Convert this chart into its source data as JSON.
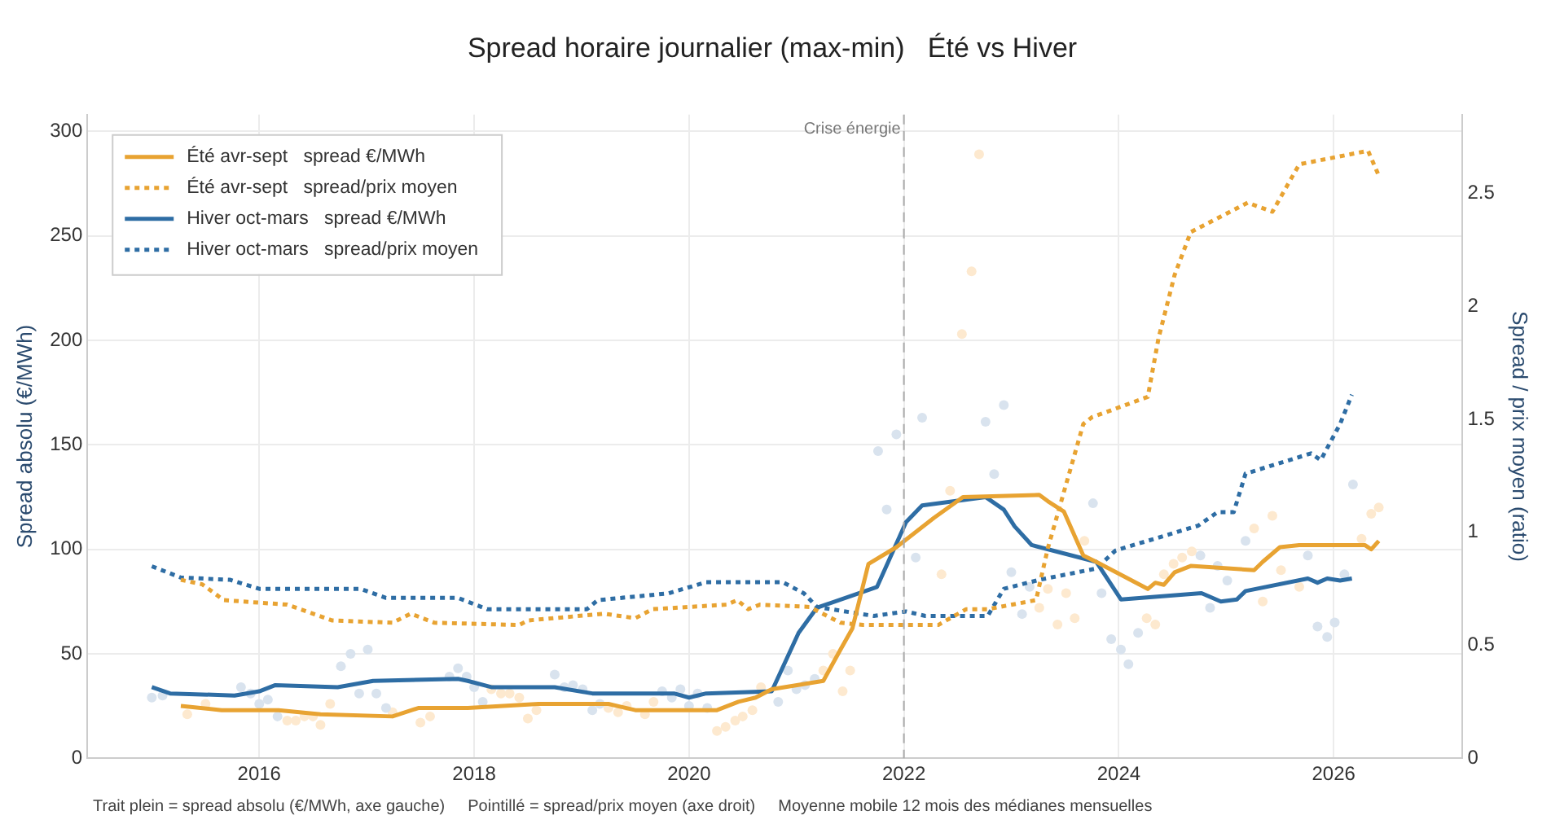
{
  "chart_data": {
    "type": "line",
    "title": "Spread horaire journalier (max-min)   Été vs Hiver",
    "ylabel": "Spread absolu (€/MWh)",
    "y2label": "Spread / prix moyen (ratio)",
    "xlim": [
      2014.4,
      2027.2
    ],
    "xticks": [
      2016,
      2018,
      2020,
      2022,
      2024,
      2026
    ],
    "ylim": [
      0,
      308
    ],
    "yticks": [
      0,
      50,
      100,
      150,
      200,
      250,
      300
    ],
    "y2lim": [
      0,
      2.85
    ],
    "y2ticks": [
      0,
      0.5,
      1,
      1.5,
      2,
      2.5
    ],
    "grid": true,
    "legend": "top left",
    "marker": "none",
    "line_style": "solid",
    "ref_lines": [
      {
        "axis": "x",
        "value": 2022,
        "label": "Crise énergie",
        "color": "#aaaaaa",
        "line_style": "dashed"
      }
    ],
    "annotations": [
      "Trait plein = spread absolu (€/MWh, axe gauche)",
      "Pointillé = spread/prix moyen (axe droit)",
      "Moyenne mobile 12 mois des médianes mensuelles"
    ],
    "series": [
      {
        "type": "scatter",
        "marker": "circle",
        "color": "#d9e3ee",
        "x": [
          2015.0,
          2015.1,
          2015.83,
          2015.92,
          2016.0,
          2016.08,
          2016.17,
          2016.76,
          2016.85,
          2016.93,
          2017.01,
          2017.09,
          2017.18,
          2017.77,
          2017.85,
          2017.93,
          2018.0,
          2018.08,
          2018.75,
          2018.84,
          2018.92,
          2019.01,
          2019.1,
          2019.17,
          2019.75,
          2019.84,
          2019.92,
          2020.0,
          2020.08,
          2020.17,
          2020.83,
          2020.92,
          2021.0,
          2021.08,
          2021.17,
          2021.76,
          2021.84,
          2021.93,
          2022.11,
          2022.17,
          2022.76,
          2022.84,
          2022.93,
          2023.0,
          2023.1,
          2023.17,
          2023.76,
          2023.84,
          2023.93,
          2024.02,
          2024.09,
          2024.18,
          2024.76,
          2024.85,
          2024.92,
          2025.01,
          2025.18,
          2025.76,
          2025.85,
          2025.94,
          2026.01,
          2026.1,
          2026.18
        ],
        "values": [
          29,
          30,
          34,
          31,
          26,
          28,
          20,
          44,
          50,
          31,
          52,
          31,
          24,
          39,
          43,
          39,
          34,
          27,
          40,
          34,
          35,
          33,
          23,
          26,
          32,
          29,
          33,
          25,
          31,
          24,
          27,
          42,
          33,
          35,
          38,
          147,
          119,
          155,
          96,
          163,
          161,
          136,
          169,
          89,
          69,
          82,
          122,
          79,
          57,
          52,
          45,
          60,
          97,
          72,
          92,
          85,
          104,
          97,
          63,
          58,
          65,
          88,
          131
        ]
      },
      {
        "type": "scatter",
        "marker": "circle",
        "color": "#fde9cf",
        "x": [
          2015.33,
          2015.5,
          2015.58,
          2016.17,
          2016.26,
          2016.34,
          2016.42,
          2016.5,
          2016.57,
          2016.66,
          2017.24,
          2017.5,
          2017.59,
          2018.16,
          2018.25,
          2018.33,
          2018.42,
          2018.5,
          2018.58,
          2019.25,
          2019.34,
          2019.42,
          2019.59,
          2019.67,
          2020.26,
          2020.34,
          2020.43,
          2020.5,
          2020.59,
          2020.67,
          2021.25,
          2021.34,
          2021.43,
          2021.5,
          2022.35,
          2022.43,
          2022.54,
          2022.63,
          2022.7,
          2023.26,
          2023.34,
          2023.43,
          2023.51,
          2023.59,
          2023.68,
          2024.26,
          2024.34,
          2024.42,
          2024.51,
          2024.59,
          2024.68,
          2025.26,
          2025.34,
          2025.43,
          2025.51,
          2025.68,
          2026.26,
          2026.35,
          2026.42
        ],
        "values": [
          21,
          26,
          null,
          null,
          18,
          18,
          20,
          20,
          16,
          26,
          22,
          17,
          20,
          33,
          31,
          31,
          29,
          19,
          23,
          24,
          22,
          25,
          21,
          27,
          13,
          15,
          18,
          20,
          23,
          34,
          42,
          50,
          32,
          42,
          88,
          128,
          203,
          233,
          289,
          72,
          81,
          64,
          79,
          67,
          104,
          67,
          64,
          88,
          93,
          96,
          99,
          110,
          75,
          116,
          90,
          82,
          105,
          117,
          120
        ]
      },
      {
        "name": "Été avr-sept   spread €/MWh",
        "color": "#e8a332",
        "x": [
          2015.27,
          2015.65,
          2016.18,
          2016.57,
          2017.24,
          2017.48,
          2017.94,
          2018.6,
          2019.25,
          2019.5,
          2020.26,
          2020.46,
          2020.62,
          2020.77,
          2021.25,
          2021.41,
          2021.52,
          2021.67,
          2021.93,
          2022.28,
          2022.55,
          2023.26,
          2023.34,
          2023.49,
          2023.67,
          2023.79,
          2024.27,
          2024.34,
          2024.42,
          2024.52,
          2024.67,
          2025.26,
          2025.34,
          2025.5,
          2025.68,
          2026.29,
          2026.35,
          2026.42
        ],
        "values": [
          25,
          23,
          23,
          21,
          20,
          24,
          24,
          26,
          26,
          23,
          23,
          27,
          29,
          33,
          37,
          52,
          62,
          93,
          101,
          115,
          125,
          126,
          123,
          118,
          97,
          94,
          81,
          84,
          83,
          89,
          92,
          90,
          94,
          101,
          102,
          102,
          100,
          104
        ]
      },
      {
        "name": "Été avr-sept   spread/prix moyen",
        "color": "#e8a332",
        "axis": "y2",
        "line_style": "dotted",
        "x": [
          2015.27,
          2015.47,
          2015.67,
          2016.26,
          2016.68,
          2017.24,
          2017.41,
          2017.63,
          2018.42,
          2018.5,
          2019.21,
          2019.5,
          2019.66,
          2020.35,
          2020.45,
          2020.55,
          2020.66,
          2021.12,
          2021.41,
          2021.62,
          2022.32,
          2022.58,
          2022.78,
          2023.23,
          2023.34,
          2023.67,
          2023.75,
          2024.27,
          2024.37,
          2024.52,
          2024.67,
          2025.2,
          2025.43,
          2025.68,
          2026.32,
          2026.42
        ],
        "values": [
          0.79,
          0.77,
          0.7,
          0.68,
          0.61,
          0.6,
          0.64,
          0.6,
          0.59,
          0.61,
          0.64,
          0.62,
          0.66,
          0.68,
          0.7,
          0.66,
          0.68,
          0.67,
          0.6,
          0.59,
          0.59,
          0.66,
          0.66,
          0.7,
          0.93,
          1.48,
          1.51,
          1.6,
          1.86,
          2.14,
          2.33,
          2.46,
          2.42,
          2.63,
          2.69,
          2.58
        ]
      },
      {
        "name": "Hiver oct-mars   spread €/MWh",
        "color": "#2e6da4",
        "x": [
          2015.0,
          2015.17,
          2015.77,
          2016.0,
          2016.15,
          2016.73,
          2017.06,
          2017.85,
          2017.94,
          2018.16,
          2018.75,
          2019.1,
          2019.86,
          2020.0,
          2020.16,
          2020.77,
          2021.02,
          2021.19,
          2021.75,
          2022.02,
          2022.17,
          2022.76,
          2022.93,
          2023.03,
          2023.19,
          2023.79,
          2024.02,
          2024.77,
          2024.95,
          2025.1,
          2025.18,
          2025.76,
          2025.85,
          2025.94,
          2026.06,
          2026.17
        ],
        "values": [
          34,
          31,
          30,
          32,
          35,
          34,
          37,
          38,
          37,
          34,
          34,
          31,
          31,
          29,
          31,
          32,
          60,
          72,
          82,
          113,
          121,
          125,
          119,
          111,
          102,
          94,
          76,
          79,
          75,
          76,
          80,
          86,
          84,
          86,
          85,
          86
        ]
      },
      {
        "name": "Hiver oct-mars   spread/prix moyen",
        "color": "#2e6da4",
        "axis": "y2",
        "line_style": "dotted",
        "x": [
          2015.0,
          2015.27,
          2015.73,
          2016.0,
          2016.94,
          2017.18,
          2017.85,
          2018.12,
          2019.05,
          2019.15,
          2019.81,
          2020.16,
          2020.87,
          2021.07,
          2021.19,
          2021.72,
          2022.02,
          2022.2,
          2022.78,
          2022.93,
          2023.26,
          2023.79,
          2023.97,
          2024.74,
          2024.92,
          2025.07,
          2025.18,
          2025.79,
          2025.88,
          2026.06,
          2026.17
        ],
        "values": [
          0.85,
          0.8,
          0.79,
          0.75,
          0.75,
          0.71,
          0.71,
          0.66,
          0.66,
          0.7,
          0.73,
          0.78,
          0.78,
          0.73,
          0.67,
          0.63,
          0.65,
          0.63,
          0.63,
          0.75,
          0.79,
          0.84,
          0.92,
          1.03,
          1.09,
          1.09,
          1.26,
          1.35,
          1.32,
          1.48,
          1.61
        ]
      }
    ]
  }
}
